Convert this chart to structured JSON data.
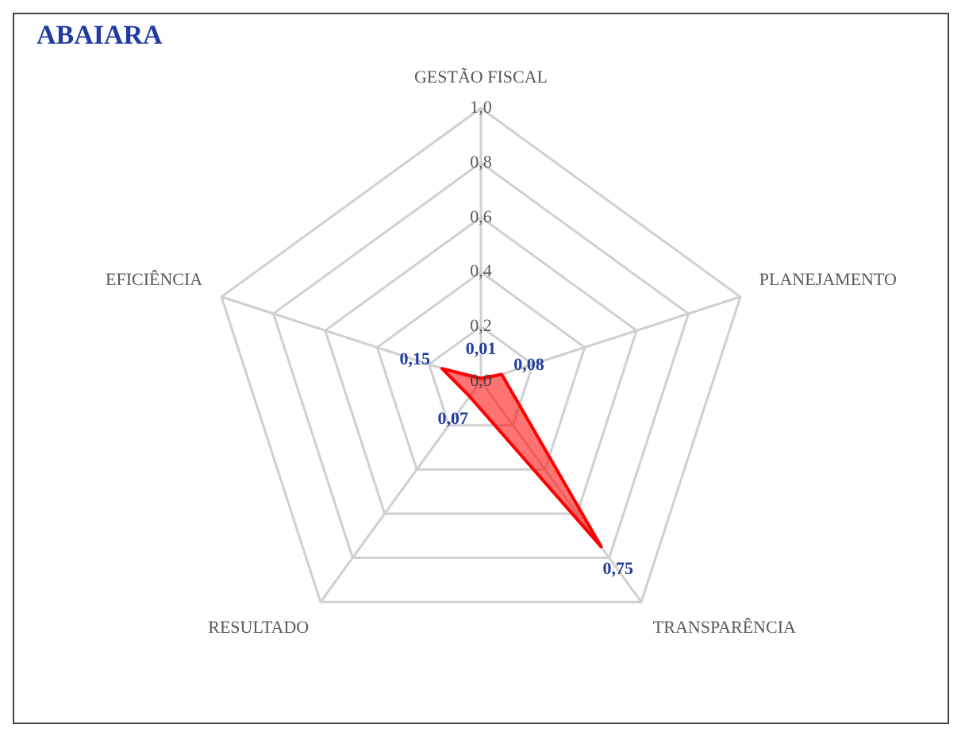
{
  "chart_data": {
    "type": "radar",
    "title": "ABAIARA",
    "categories": [
      "GESTÃO FISCAL",
      "PLANEJAMENTO",
      "TRANSPARÊNCIA",
      "RESULTADO",
      "EFICIÊNCIA"
    ],
    "series": [
      {
        "color": "#ff0000",
        "values": [
          0.01,
          0.08,
          0.75,
          0.07,
          0.15
        ],
        "value_labels": [
          "0,01",
          "0,08",
          "0,75",
          "0,07",
          "0,15"
        ]
      }
    ],
    "ylim": [
      0,
      1
    ],
    "yticks": [
      {
        "value": 0,
        "label": "0,0"
      },
      {
        "value": 0.2,
        "label": "0,2"
      },
      {
        "value": 0.4,
        "label": "0,4"
      },
      {
        "value": 0.6,
        "label": "0,6"
      },
      {
        "value": 0.8,
        "label": "0,8"
      },
      {
        "value": 1,
        "label": "1,0"
      }
    ],
    "grid": true,
    "marker": "none",
    "legend": false
  }
}
